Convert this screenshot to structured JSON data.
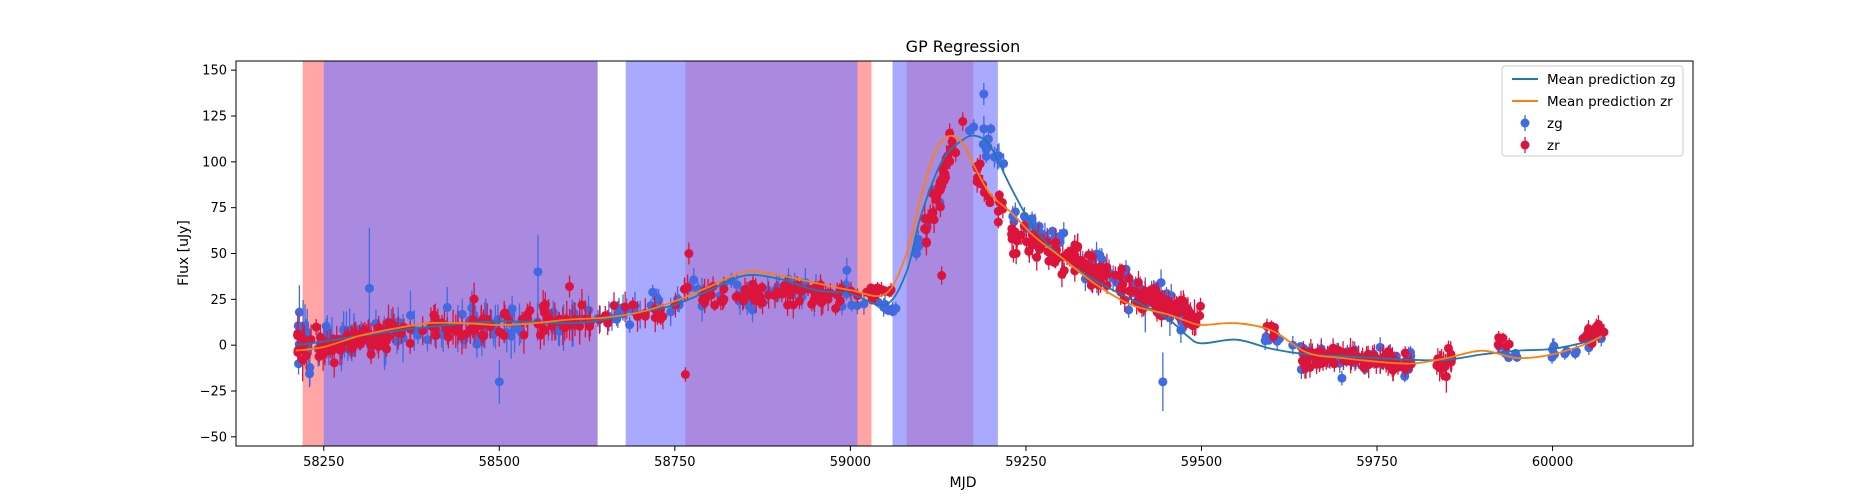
{
  "chart_data": {
    "type": "scatter",
    "title": "GP Regression",
    "xlabel": "MJD",
    "ylabel": "Flux [uJy]",
    "xlim": [
      58125,
      60200
    ],
    "ylim": [
      -55,
      155
    ],
    "xticks": [
      58250,
      58500,
      58750,
      59000,
      59250,
      59500,
      59750,
      60000
    ],
    "yticks": [
      -50,
      -25,
      0,
      25,
      50,
      75,
      100,
      125,
      150
    ],
    "legend_position": "top-right",
    "colors": {
      "zg_points": "#4169e1",
      "zr_points": "#dc143c",
      "zg_line": "#1f77b4",
      "zr_line": "#ff7f0e",
      "zg_span": "#7b7bff",
      "zr_span": "#ff7f7f"
    },
    "spans": {
      "zr": [
        [
          58220,
          58640
        ],
        [
          58765,
          59030
        ],
        [
          59080,
          59175
        ]
      ],
      "zg": [
        [
          58250,
          58640
        ],
        [
          58680,
          59010
        ],
        [
          59060,
          59210
        ]
      ]
    },
    "series": [
      {
        "name": "Mean prediction zg",
        "kind": "line",
        "color": "#1f77b4",
        "x": [
          58210,
          58250,
          58300,
          58400,
          58500,
          58600,
          58650,
          58700,
          58750,
          58800,
          58850,
          58900,
          58950,
          59000,
          59050,
          59080,
          59100,
          59130,
          59160,
          59180,
          59200,
          59230,
          59260,
          59300,
          59350,
          59400,
          59450,
          59480,
          59500,
          59550,
          59600,
          59650,
          59700,
          59750,
          59800,
          59850,
          59900,
          59950,
          60000,
          60050,
          60070
        ],
        "y": [
          0,
          2,
          5,
          10,
          13,
          12,
          14,
          18,
          22,
          30,
          38,
          36,
          30,
          28,
          22,
          40,
          70,
          100,
          112,
          114,
          108,
          85,
          65,
          48,
          35,
          25,
          15,
          5,
          1,
          3,
          -2,
          -5,
          -6,
          -7,
          -8,
          -8,
          -5,
          -3,
          -2,
          2,
          5
        ]
      },
      {
        "name": "Mean prediction zr",
        "kind": "line",
        "color": "#ff7f0e",
        "x": [
          58210,
          58250,
          58300,
          58350,
          58400,
          58450,
          58500,
          58550,
          58600,
          58650,
          58700,
          58750,
          58800,
          58850,
          58900,
          58950,
          59000,
          59050,
          59080,
          59100,
          59120,
          59140,
          59160,
          59180,
          59200,
          59230,
          59260,
          59300,
          59350,
          59400,
          59450,
          59480,
          59500,
          59550,
          59600,
          59650,
          59700,
          59750,
          59800,
          59850,
          59900,
          59950,
          60000,
          60050,
          60070
        ],
        "y": [
          -3,
          -1,
          5,
          9,
          12,
          12,
          11,
          12,
          14,
          15,
          18,
          24,
          32,
          40,
          38,
          34,
          30,
          28,
          50,
          80,
          105,
          114,
          110,
          95,
          82,
          72,
          60,
          48,
          33,
          22,
          17,
          13,
          11,
          12,
          8,
          -4,
          -7,
          -9,
          -10,
          -7,
          -3,
          -7,
          -5,
          1,
          5
        ]
      },
      {
        "name": "zg",
        "kind": "errorbar",
        "color": "#4169e1",
        "seed": 7,
        "clusters": [
          {
            "x0": 58210,
            "x1": 58240,
            "n": 14,
            "y0": 2,
            "y1": 0,
            "sd": 12,
            "err": 10
          },
          {
            "x0": 58240,
            "x1": 58320,
            "n": 28,
            "y0": 0,
            "y1": 6,
            "sd": 7,
            "err": 8
          },
          {
            "x0": 58320,
            "x1": 58640,
            "n": 60,
            "y0": 6,
            "y1": 14,
            "sd": 8,
            "err": 9
          },
          {
            "x0": 58640,
            "x1": 58760,
            "n": 22,
            "y0": 15,
            "y1": 22,
            "sd": 5,
            "err": 6
          },
          {
            "x0": 58760,
            "x1": 59000,
            "n": 40,
            "y0": 28,
            "y1": 28,
            "sd": 8,
            "err": 6
          },
          {
            "x0": 59000,
            "x1": 59070,
            "n": 10,
            "y0": 25,
            "y1": 18,
            "sd": 4,
            "err": 4
          },
          {
            "x0": 59080,
            "x1": 59140,
            "n": 12,
            "y0": 40,
            "y1": 100,
            "sd": 6,
            "err": 5
          },
          {
            "x0": 59160,
            "x1": 59230,
            "n": 14,
            "y0": 125,
            "y1": 88,
            "sd": 8,
            "err": 5
          },
          {
            "x0": 59230,
            "x1": 59480,
            "n": 70,
            "y0": 70,
            "y1": 15,
            "sd": 7,
            "err": 5
          },
          {
            "x0": 59590,
            "x1": 59620,
            "n": 5,
            "y0": 3,
            "y1": 2,
            "sd": 4,
            "err": 4
          },
          {
            "x0": 59640,
            "x1": 59800,
            "n": 40,
            "y0": -6,
            "y1": -8,
            "sd": 5,
            "err": 4
          },
          {
            "x0": 59920,
            "x1": 59950,
            "n": 5,
            "y0": -3,
            "y1": -5,
            "sd": 3,
            "err": 3
          },
          {
            "x0": 59990,
            "x1": 60070,
            "n": 12,
            "y0": -3,
            "y1": 5,
            "sd": 6,
            "err": 4
          }
        ],
        "points": [
          [
            58315,
            31,
            33
          ],
          [
            58500,
            -20,
            12
          ],
          [
            58555,
            40,
            20
          ],
          [
            59420,
            22,
            15
          ],
          [
            59445,
            -20,
            16
          ],
          [
            59455,
            15,
            10
          ],
          [
            59190,
            137,
            6
          ],
          [
            59200,
            118,
            3
          ],
          [
            59630,
            0,
            5
          ],
          [
            59700,
            -18,
            4
          ]
        ]
      },
      {
        "name": "zr",
        "kind": "errorbar",
        "color": "#dc143c",
        "seed": 13,
        "clusters": [
          {
            "x0": 58210,
            "x1": 58240,
            "n": 12,
            "y0": -3,
            "y1": 0,
            "sd": 8,
            "err": 8
          },
          {
            "x0": 58240,
            "x1": 58340,
            "n": 70,
            "y0": -3,
            "y1": 6,
            "sd": 6,
            "err": 6
          },
          {
            "x0": 58340,
            "x1": 58640,
            "n": 80,
            "y0": 8,
            "y1": 14,
            "sd": 7,
            "err": 7
          },
          {
            "x0": 58640,
            "x1": 58760,
            "n": 18,
            "y0": 14,
            "y1": 20,
            "sd": 6,
            "err": 6
          },
          {
            "x0": 58760,
            "x1": 59010,
            "n": 70,
            "y0": 28,
            "y1": 28,
            "sd": 6,
            "err": 5
          },
          {
            "x0": 59010,
            "x1": 59060,
            "n": 14,
            "y0": 30,
            "y1": 30,
            "sd": 4,
            "err": 3
          },
          {
            "x0": 59105,
            "x1": 59145,
            "n": 30,
            "y0": 60,
            "y1": 110,
            "sd": 10,
            "err": 5
          },
          {
            "x0": 59180,
            "x1": 59220,
            "n": 16,
            "y0": 90,
            "y1": 72,
            "sd": 7,
            "err": 4
          },
          {
            "x0": 59220,
            "x1": 59500,
            "n": 150,
            "y0": 62,
            "y1": 14,
            "sd": 7,
            "err": 5
          },
          {
            "x0": 59590,
            "x1": 59610,
            "n": 5,
            "y0": 10,
            "y1": 8,
            "sd": 3,
            "err": 3
          },
          {
            "x0": 59640,
            "x1": 59800,
            "n": 90,
            "y0": -6,
            "y1": -10,
            "sd": 5,
            "err": 5
          },
          {
            "x0": 59835,
            "x1": 59860,
            "n": 18,
            "y0": -8,
            "y1": -10,
            "sd": 8,
            "err": 6
          },
          {
            "x0": 59920,
            "x1": 59940,
            "n": 5,
            "y0": 3,
            "y1": 0,
            "sd": 3,
            "err": 3
          },
          {
            "x0": 60040,
            "x1": 60075,
            "n": 16,
            "y0": 3,
            "y1": 8,
            "sd": 5,
            "err": 4
          }
        ],
        "points": [
          [
            58770,
            50,
            6
          ],
          [
            58765,
            -16,
            4
          ],
          [
            58600,
            32,
            6
          ],
          [
            59160,
            122,
            5
          ],
          [
            59150,
            105,
            5
          ],
          [
            59130,
            38,
            5
          ],
          [
            59490,
            15,
            10
          ]
        ]
      }
    ]
  }
}
